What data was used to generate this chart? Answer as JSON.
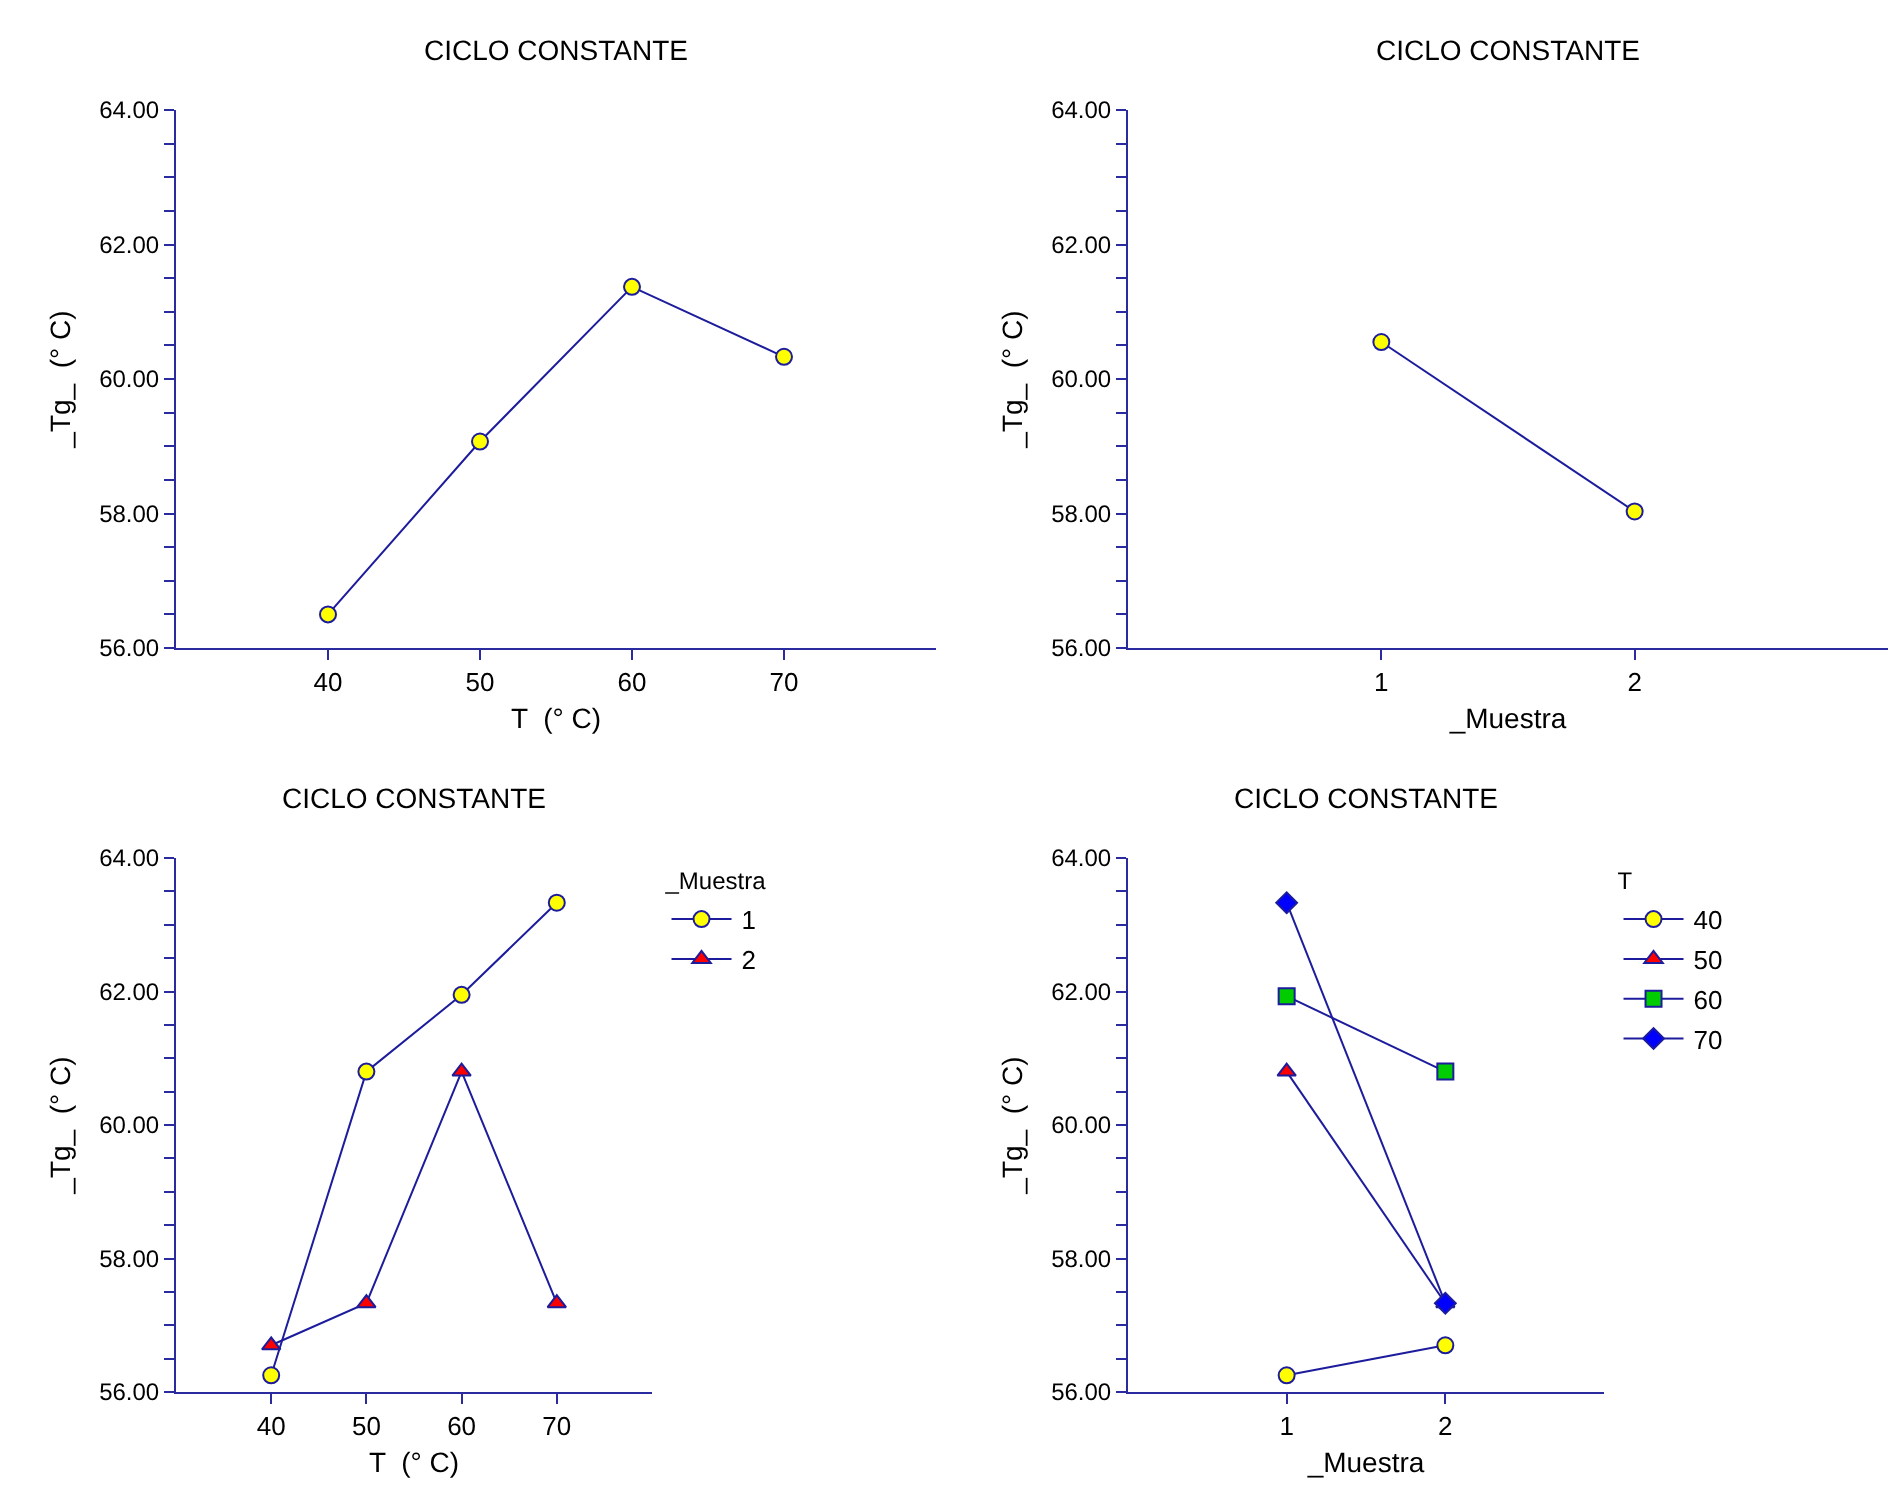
{
  "chart_data": [
    {
      "type": "line",
      "title": "CICLO CONSTANTE",
      "xlabel": "T  (° C)",
      "ylabel": "_Tg_  (° C)",
      "x": [
        40,
        50,
        60,
        70
      ],
      "series": [
        {
          "color": "#ffff00",
          "marker": "circle",
          "values": [
            56.5,
            59.07,
            61.37,
            60.33
          ]
        }
      ],
      "xlim": [
        30,
        80
      ],
      "xticks": [
        40,
        50,
        60,
        70
      ],
      "ylim": [
        56,
        64
      ],
      "yticks": [
        {
          "value": 56,
          "label": "56.00"
        },
        {
          "value": 56.5,
          "label": null
        },
        {
          "value": 57,
          "label": null
        },
        {
          "value": 57.5,
          "label": null
        },
        {
          "value": 58,
          "label": "58.00"
        },
        {
          "value": 58.5,
          "label": null
        },
        {
          "value": 59,
          "label": null
        },
        {
          "value": 59.5,
          "label": null
        },
        {
          "value": 60,
          "label": "60.00"
        },
        {
          "value": 60.5,
          "label": null
        },
        {
          "value": 61,
          "label": null
        },
        {
          "value": 61.5,
          "label": null
        },
        {
          "value": 62,
          "label": "62.00"
        },
        {
          "value": 62.5,
          "label": null
        },
        {
          "value": 63,
          "label": null
        },
        {
          "value": 63.5,
          "label": null
        },
        {
          "value": 64,
          "label": "64.00"
        }
      ],
      "grid": false,
      "legend": false
    },
    {
      "type": "line",
      "title": "CICLO CONSTANTE",
      "xlabel": "_Muestra",
      "ylabel": "_Tg_  (° C)",
      "x": [
        1,
        2
      ],
      "series": [
        {
          "color": "#ffff00",
          "marker": "circle",
          "values": [
            60.55,
            58.03
          ]
        }
      ],
      "xlim": [
        0,
        3
      ],
      "xticks": [
        1,
        2
      ],
      "ylim": [
        56,
        64
      ],
      "yticks": [
        {
          "value": 56,
          "label": "56.00"
        },
        {
          "value": 56.5,
          "label": null
        },
        {
          "value": 57,
          "label": null
        },
        {
          "value": 57.5,
          "label": null
        },
        {
          "value": 58,
          "label": "58.00"
        },
        {
          "value": 58.5,
          "label": null
        },
        {
          "value": 59,
          "label": null
        },
        {
          "value": 59.5,
          "label": null
        },
        {
          "value": 60,
          "label": "60.00"
        },
        {
          "value": 60.5,
          "label": null
        },
        {
          "value": 61,
          "label": null
        },
        {
          "value": 61.5,
          "label": null
        },
        {
          "value": 62,
          "label": "62.00"
        },
        {
          "value": 62.5,
          "label": null
        },
        {
          "value": 63,
          "label": null
        },
        {
          "value": 63.5,
          "label": null
        },
        {
          "value": 64,
          "label": "64.00"
        }
      ],
      "grid": false,
      "legend": false
    },
    {
      "type": "line",
      "title": "CICLO CONSTANTE",
      "xlabel": "T  (° C)",
      "ylabel": "_Tg_  (° C)",
      "legend_title": "_Muestra",
      "x": [
        40,
        50,
        60,
        70
      ],
      "series": [
        {
          "name": "1",
          "color": "#ffff00",
          "marker": "circle",
          "values": [
            56.25,
            60.8,
            61.95,
            63.33
          ]
        },
        {
          "name": "2",
          "color": "#ff0000",
          "marker": "triangle",
          "values": [
            56.7,
            57.33,
            60.8,
            57.33
          ]
        }
      ],
      "xlim": [
        30,
        80
      ],
      "xticks": [
        40,
        50,
        60,
        70
      ],
      "ylim": [
        56,
        64
      ],
      "yticks": [
        {
          "value": 56,
          "label": "56.00"
        },
        {
          "value": 56.5,
          "label": null
        },
        {
          "value": 57,
          "label": null
        },
        {
          "value": 57.5,
          "label": null
        },
        {
          "value": 58,
          "label": "58.00"
        },
        {
          "value": 58.5,
          "label": null
        },
        {
          "value": 59,
          "label": null
        },
        {
          "value": 59.5,
          "label": null
        },
        {
          "value": 60,
          "label": "60.00"
        },
        {
          "value": 60.5,
          "label": null
        },
        {
          "value": 61,
          "label": null
        },
        {
          "value": 61.5,
          "label": null
        },
        {
          "value": 62,
          "label": "62.00"
        },
        {
          "value": 62.5,
          "label": null
        },
        {
          "value": 63,
          "label": null
        },
        {
          "value": 63.5,
          "label": null
        },
        {
          "value": 64,
          "label": "64.00"
        }
      ],
      "grid": false,
      "legend": "top right"
    },
    {
      "type": "line",
      "title": "CICLO CONSTANTE",
      "xlabel": "_Muestra",
      "ylabel": "_Tg_  (° C)",
      "legend_title": "T",
      "x": [
        1,
        2
      ],
      "series": [
        {
          "name": "40",
          "color": "#ffff00",
          "marker": "circle",
          "values": [
            56.25,
            56.7
          ]
        },
        {
          "name": "50",
          "color": "#ff0000",
          "marker": "triangle",
          "values": [
            60.8,
            57.33
          ]
        },
        {
          "name": "60",
          "color": "#00cc00",
          "marker": "square",
          "values": [
            61.93,
            60.8
          ]
        },
        {
          "name": "70",
          "color": "#0000ff",
          "marker": "diamond",
          "values": [
            63.33,
            57.33
          ]
        }
      ],
      "xlim": [
        0,
        3
      ],
      "xticks": [
        1,
        2
      ],
      "ylim": [
        56,
        64
      ],
      "yticks": [
        {
          "value": 56,
          "label": "56.00"
        },
        {
          "value": 56.5,
          "label": null
        },
        {
          "value": 57,
          "label": null
        },
        {
          "value": 57.5,
          "label": null
        },
        {
          "value": 58,
          "label": "58.00"
        },
        {
          "value": 58.5,
          "label": null
        },
        {
          "value": 59,
          "label": null
        },
        {
          "value": 59.5,
          "label": null
        },
        {
          "value": 60,
          "label": "60.00"
        },
        {
          "value": 60.5,
          "label": null
        },
        {
          "value": 61,
          "label": null
        },
        {
          "value": 61.5,
          "label": null
        },
        {
          "value": 62,
          "label": "62.00"
        },
        {
          "value": 62.5,
          "label": null
        },
        {
          "value": 63,
          "label": null
        },
        {
          "value": 63.5,
          "label": null
        },
        {
          "value": 64,
          "label": "64.00"
        }
      ],
      "grid": false,
      "legend": "top right"
    }
  ]
}
